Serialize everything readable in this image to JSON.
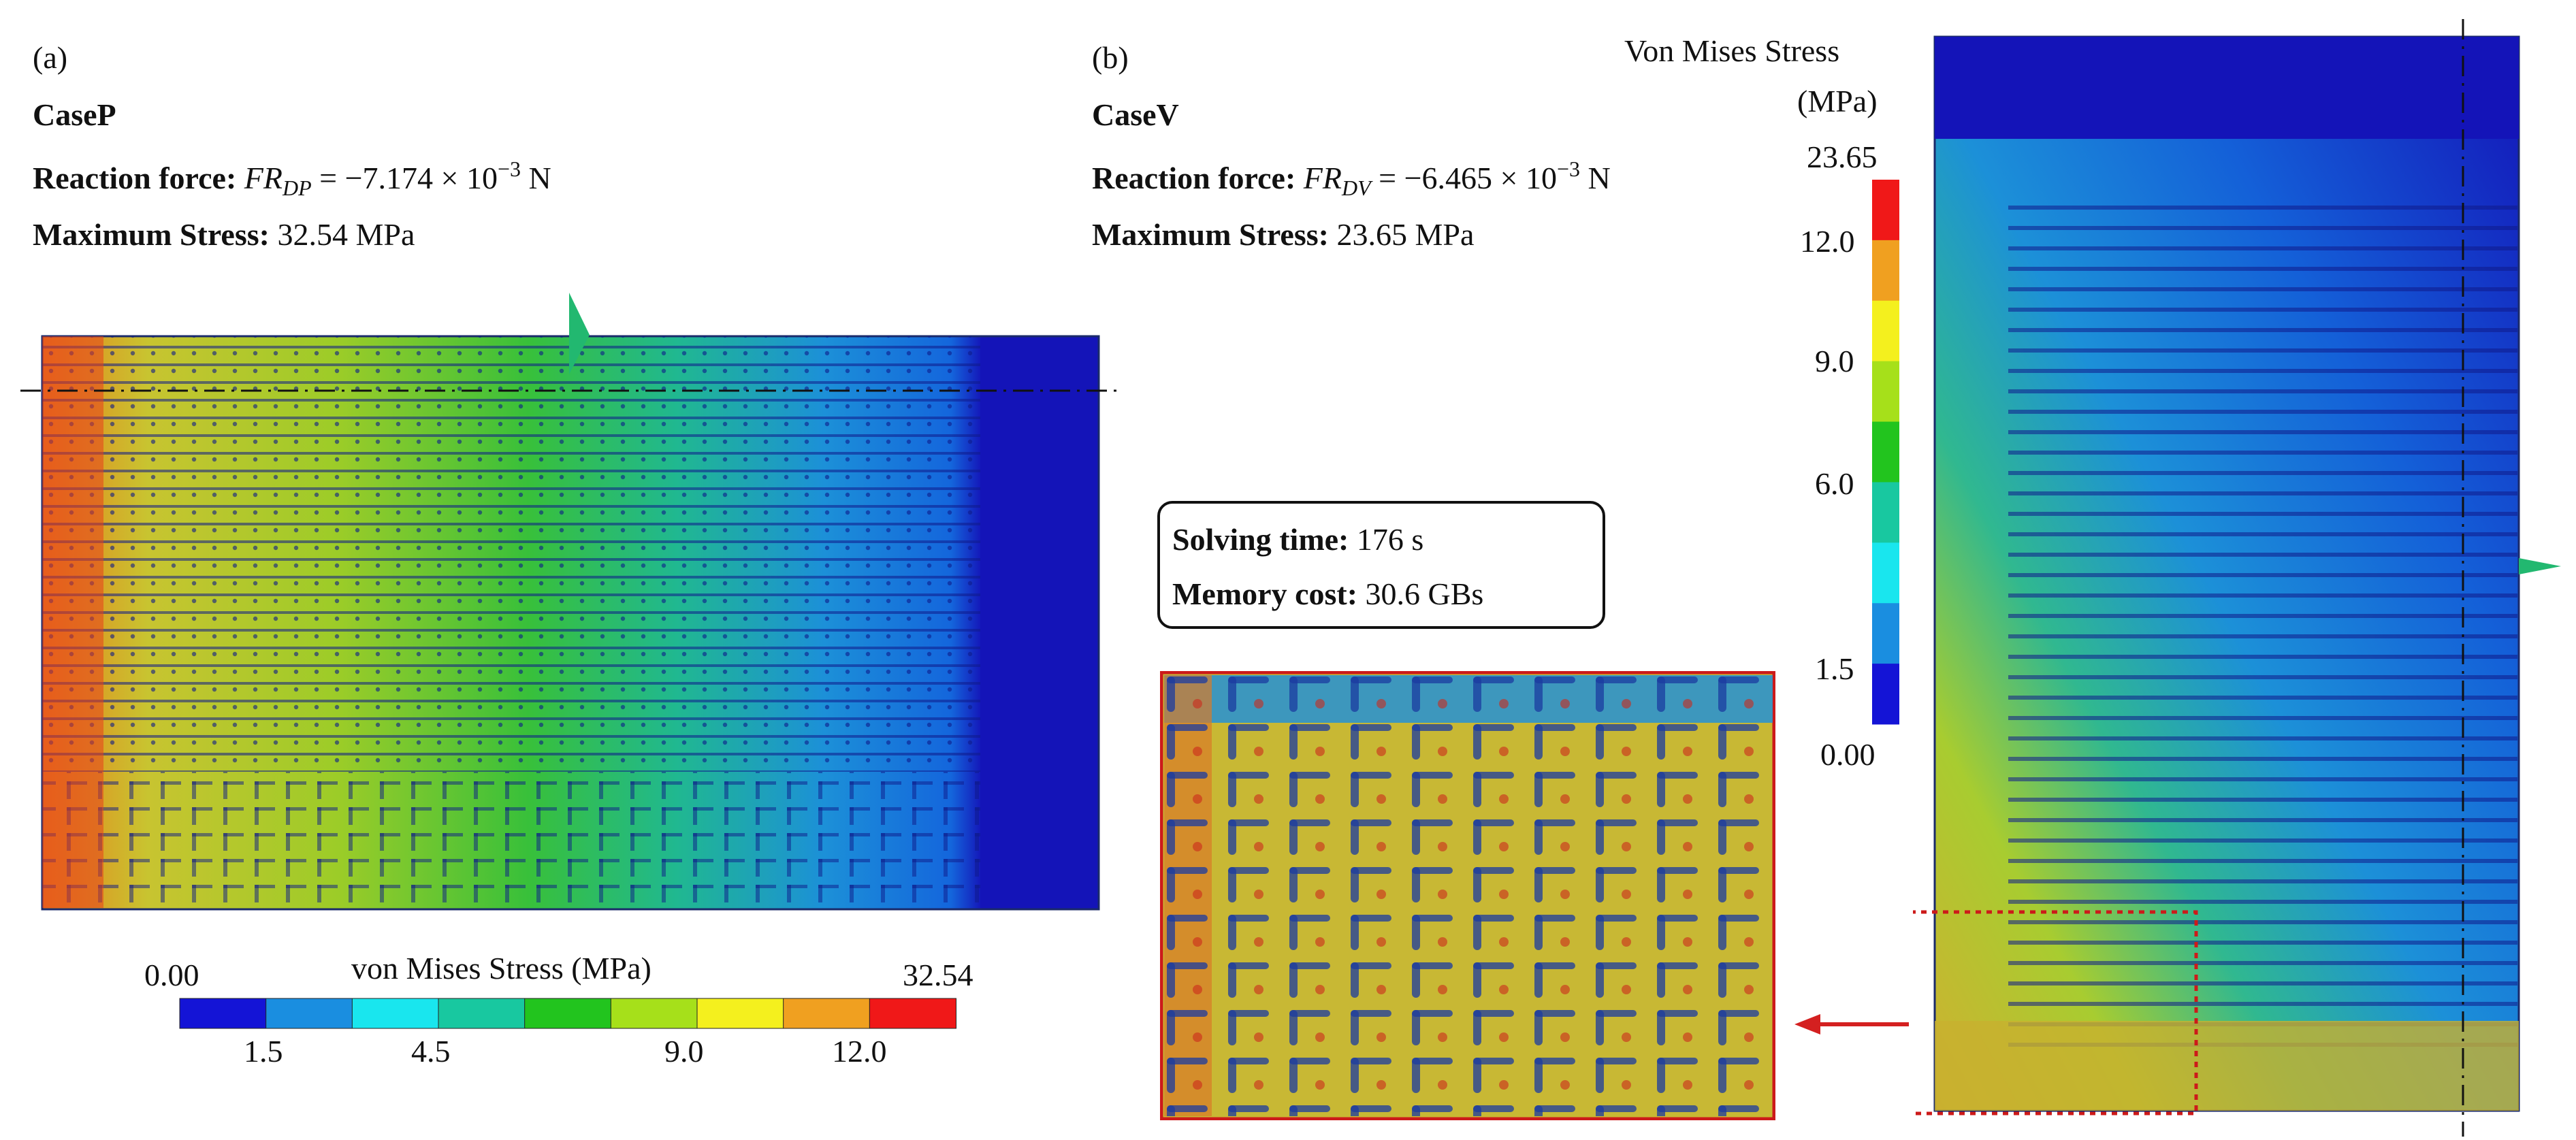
{
  "panel_a": {
    "label": "(a)",
    "case": "CaseP",
    "reaction_label": "Reaction force:",
    "reaction_var": "FR",
    "reaction_sub": "DP",
    "reaction_value": " = −7.174 × 10",
    "reaction_exp": "−3",
    "reaction_unit": " N",
    "max_label": "Maximum Stress:",
    "max_value": " 32.54 MPa"
  },
  "panel_b": {
    "label": "(b)",
    "case": "CaseV",
    "reaction_label": "Reaction force:",
    "reaction_var": "FR",
    "reaction_sub": "DV",
    "reaction_value": " = −6.465 × 10",
    "reaction_exp": "−3",
    "reaction_unit": " N",
    "max_label": "Maximum Stress:",
    "max_value": " 23.65 MPa"
  },
  "info": {
    "solving_label": "Solving time:",
    "solving_value": " 176 s",
    "memory_label": "Memory cost:",
    "memory_value": " 30.6 GBs"
  },
  "legend_a": {
    "title": "von Mises Stress (MPa)",
    "min": "0.00",
    "max": "32.54",
    "ticks": [
      "1.5",
      "4.5",
      "9.0",
      "12.0"
    ],
    "colors": [
      "#1414d6",
      "#1a8ee0",
      "#19e6ee",
      "#18c8a0",
      "#22c41e",
      "#a6e01a",
      "#f4f01e",
      "#f0a020",
      "#f01818"
    ]
  },
  "legend_b": {
    "title_line1": "Von Mises Stress",
    "title_line2": "(MPa)",
    "max": "23.65",
    "ticks": [
      "12.0",
      "9.0",
      "6.0",
      "1.5"
    ],
    "min": "0.00",
    "colors": [
      "#f01818",
      "#f0a020",
      "#f4f01e",
      "#a6e01a",
      "#22c41e",
      "#18c8a0",
      "#19e6ee",
      "#1a8ee0",
      "#1414d6"
    ]
  }
}
